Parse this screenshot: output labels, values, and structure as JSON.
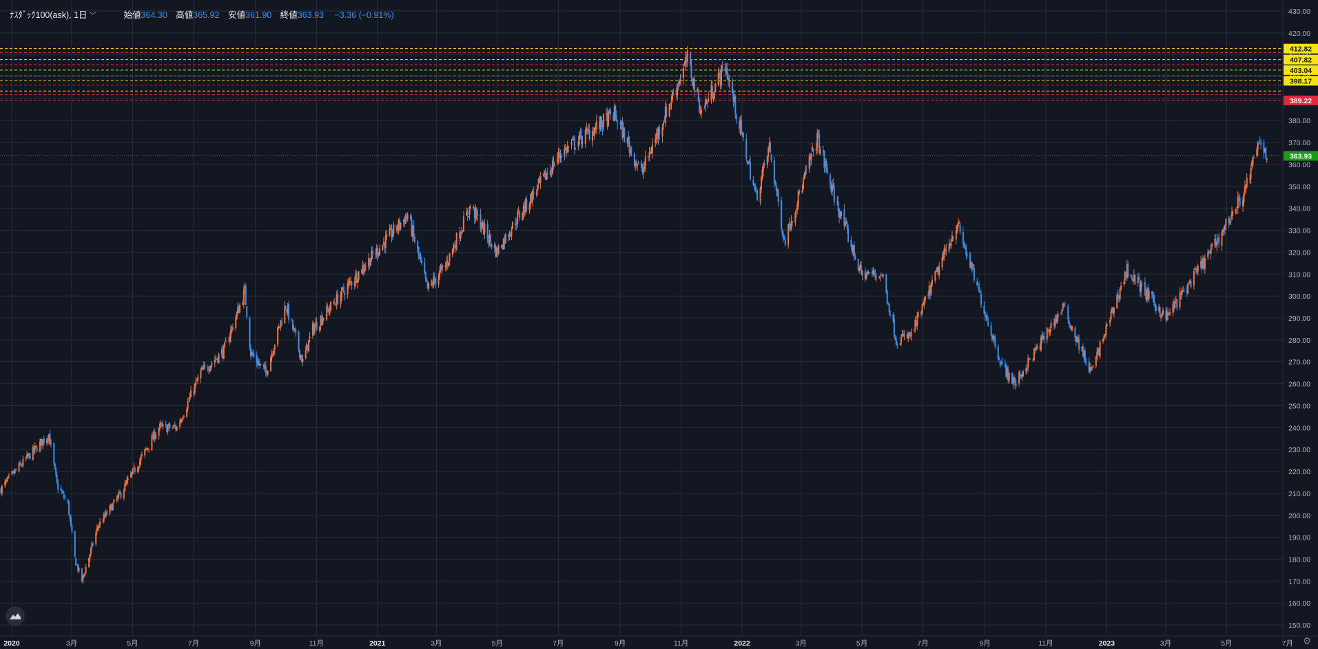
{
  "header": {
    "symbol": "ﾅｽﾀﾞｯｸ100(ask), 1日",
    "open_label": "始値",
    "open_value": "364.30",
    "high_label": "高値",
    "high_value": "365.92",
    "low_label": "安値",
    "low_value": "361.90",
    "close_label": "終値",
    "close_value": "363.93",
    "change": "−3.36 (−0.91%)"
  },
  "colors": {
    "background": "#131722",
    "grid": "#2a2e39",
    "up": "#f0743c",
    "down": "#3d8fe8",
    "level_yellow": "#f5e312",
    "level_red": "#e0293c",
    "last_price": "#1a9c1a"
  },
  "icons": {
    "logo": "tradingview-logo-icon",
    "settings": "gear-icon"
  },
  "chart_data": {
    "type": "candlestick",
    "y_axis": {
      "min": 145,
      "max": 435,
      "ticks": [
        "150.00",
        "160.00",
        "170.00",
        "180.00",
        "190.00",
        "200.00",
        "210.00",
        "220.00",
        "230.00",
        "240.00",
        "250.00",
        "260.00",
        "270.00",
        "280.00",
        "290.00",
        "300.00",
        "310.00",
        "320.00",
        "330.00",
        "340.00",
        "350.00",
        "360.00",
        "370.00",
        "380.00",
        "390.00",
        "400.00",
        "410.00",
        "420.00",
        "430.00"
      ]
    },
    "x_axis": {
      "ticks": [
        "2020",
        "3月",
        "5月",
        "7月",
        "9月",
        "11月",
        "2021",
        "3月",
        "5月",
        "7月",
        "9月",
        "11月",
        "2022",
        "3月",
        "5月",
        "7月",
        "9月",
        "11月",
        "2023",
        "3月",
        "5月",
        "7月"
      ]
    },
    "anchors": [
      {
        "label": "2020-01-02",
        "close": 212
      },
      {
        "label": "2020-01-20",
        "close": 222
      },
      {
        "label": "2020-02-19",
        "close": 237
      },
      {
        "label": "2020-02-27",
        "close": 214
      },
      {
        "label": "2020-03-09",
        "close": 205
      },
      {
        "label": "2020-03-16",
        "close": 180
      },
      {
        "label": "2020-03-23",
        "close": 170
      },
      {
        "label": "2020-04-08",
        "close": 195
      },
      {
        "label": "2020-05-01",
        "close": 210
      },
      {
        "label": "2020-06-08",
        "close": 240
      },
      {
        "label": "2020-06-26",
        "close": 240
      },
      {
        "label": "2020-07-20",
        "close": 265
      },
      {
        "label": "2020-08-12",
        "close": 275
      },
      {
        "label": "2020-09-02",
        "close": 302
      },
      {
        "label": "2020-09-08",
        "close": 274
      },
      {
        "label": "2020-09-23",
        "close": 265
      },
      {
        "label": "2020-10-13",
        "close": 296
      },
      {
        "label": "2020-10-30",
        "close": 270
      },
      {
        "label": "2020-11-09",
        "close": 285
      },
      {
        "label": "2020-12-31",
        "close": 314
      },
      {
        "label": "2021-02-12",
        "close": 337
      },
      {
        "label": "2021-03-04",
        "close": 303
      },
      {
        "label": "2021-03-22",
        "close": 314
      },
      {
        "label": "2021-04-16",
        "close": 341
      },
      {
        "label": "2021-05-12",
        "close": 320
      },
      {
        "label": "2021-06-01",
        "close": 335
      },
      {
        "label": "2021-07-15",
        "close": 365
      },
      {
        "label": "2021-09-07",
        "close": 383
      },
      {
        "label": "2021-10-04",
        "close": 356
      },
      {
        "label": "2021-11-19",
        "close": 408
      },
      {
        "label": "2021-12-03",
        "close": 384
      },
      {
        "label": "2021-12-27",
        "close": 405
      },
      {
        "label": "2022-01-27",
        "close": 345
      },
      {
        "label": "2022-02-09",
        "close": 368
      },
      {
        "label": "2022-02-24",
        "close": 325
      },
      {
        "label": "2022-03-29",
        "close": 372
      },
      {
        "label": "2022-04-13",
        "close": 348
      },
      {
        "label": "2022-05-12",
        "close": 310
      },
      {
        "label": "2022-06-02",
        "close": 310
      },
      {
        "label": "2022-06-16",
        "close": 280
      },
      {
        "label": "2022-07-01",
        "close": 282
      },
      {
        "label": "2022-08-16",
        "close": 333
      },
      {
        "label": "2022-09-30",
        "close": 268
      },
      {
        "label": "2022-10-13",
        "close": 260
      },
      {
        "label": "2022-11-30",
        "close": 295
      },
      {
        "label": "2022-12-28",
        "close": 265
      },
      {
        "label": "2023-02-02",
        "close": 312
      },
      {
        "label": "2023-03-13",
        "close": 290
      },
      {
        "label": "2023-04-28",
        "close": 321
      },
      {
        "label": "2023-05-31",
        "close": 348
      },
      {
        "label": "2023-06-15",
        "close": 371
      },
      {
        "label": "2023-06-23",
        "close": 363.93
      }
    ],
    "levels": [
      {
        "value": 412.82,
        "color": "yellow",
        "label": "412.82"
      },
      {
        "value": 411.0,
        "color": "red",
        "label": ""
      },
      {
        "value": 407.82,
        "color": "yellow",
        "label": "407.82"
      },
      {
        "value": 405.5,
        "color": "red",
        "label": ""
      },
      {
        "value": 403.04,
        "color": "yellow",
        "label": "403.04"
      },
      {
        "value": 400.5,
        "color": "red",
        "label": ""
      },
      {
        "value": 398.17,
        "color": "yellow",
        "label": "398.17"
      },
      {
        "value": 396.2,
        "color": "red",
        "label": ""
      },
      {
        "value": 393.5,
        "color": "yellow",
        "label": ""
      },
      {
        "value": 391.8,
        "color": "red",
        "label": ""
      },
      {
        "value": 389.22,
        "color": "red",
        "label": "389.22"
      }
    ],
    "last_price": {
      "value": 363.93,
      "label": "363.93"
    }
  }
}
